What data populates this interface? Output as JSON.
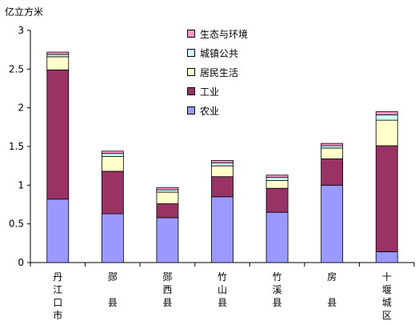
{
  "chart_data": {
    "type": "bar",
    "stacked": true,
    "ylabel": "亿立方米",
    "ylim": [
      0,
      3
    ],
    "yticks": [
      "0",
      "0.5",
      "1",
      "1.5",
      "2",
      "2.5",
      "3"
    ],
    "categories": [
      "丹江口市",
      "郧县",
      "郧西县",
      "竹山县",
      "竹溪县",
      "房县",
      "十堰城区"
    ],
    "category_lines": [
      [
        "丹",
        "江",
        "口",
        "市"
      ],
      [
        "郧",
        "",
        "县"
      ],
      [
        "郧",
        "西",
        "县"
      ],
      [
        "竹",
        "山",
        "县"
      ],
      [
        "竹",
        "溪",
        "县"
      ],
      [
        "房",
        "",
        "县"
      ],
      [
        "十",
        "堰",
        "城",
        "区"
      ]
    ],
    "series": [
      {
        "name": "农业",
        "color": "#9999ff",
        "values": [
          0.82,
          0.63,
          0.58,
          0.85,
          0.65,
          1.0,
          0.14
        ]
      },
      {
        "name": "工业",
        "color": "#993366",
        "values": [
          1.67,
          0.55,
          0.18,
          0.26,
          0.31,
          0.34,
          1.37
        ]
      },
      {
        "name": "居民生活",
        "color": "#ffffcc",
        "values": [
          0.17,
          0.19,
          0.15,
          0.14,
          0.1,
          0.14,
          0.33
        ]
      },
      {
        "name": "城镇公共",
        "color": "#ccffff",
        "values": [
          0.03,
          0.04,
          0.03,
          0.04,
          0.04,
          0.03,
          0.07
        ]
      },
      {
        "name": "生态与环境",
        "color": "#ff99cc",
        "values": [
          0.03,
          0.03,
          0.03,
          0.03,
          0.03,
          0.03,
          0.04
        ]
      }
    ],
    "grid": false,
    "legend_position": "top-center"
  }
}
